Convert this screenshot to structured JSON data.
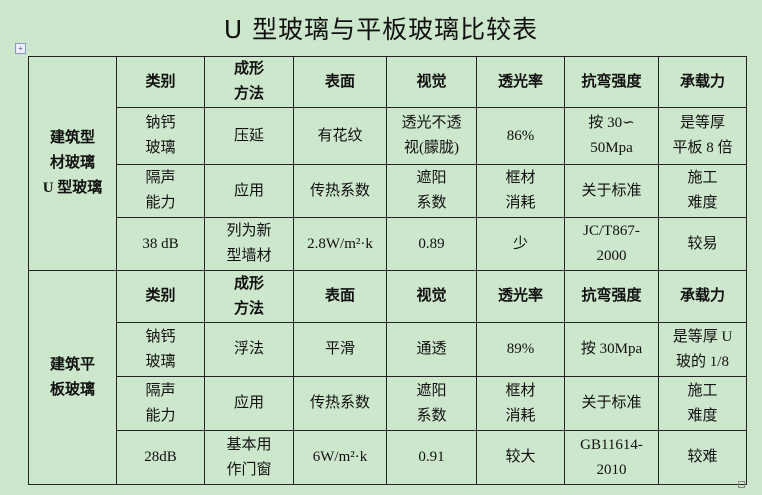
{
  "title": "U 型玻璃与平板玻璃比较表",
  "groups": [
    {
      "label": "建筑型材玻璃U型玻璃",
      "label_lines": [
        "建筑型",
        "材玻璃",
        "U 型玻璃"
      ],
      "rows": [
        [
          [
            "类别"
          ],
          [
            "成形",
            "方法"
          ],
          [
            "表面"
          ],
          [
            "视觉"
          ],
          [
            "透光率"
          ],
          [
            "抗弯强度"
          ],
          [
            "承载力"
          ]
        ],
        [
          [
            "钠钙",
            "玻璃"
          ],
          [
            "压延"
          ],
          [
            "有花纹"
          ],
          [
            "透光不透",
            "视(朦胧)"
          ],
          [
            "86%"
          ],
          [
            "按 30∽",
            "50Mpa"
          ],
          [
            "是等厚",
            "平板 8 倍"
          ]
        ],
        [
          [
            "隔声",
            "能力"
          ],
          [
            "应用"
          ],
          [
            "传热系数"
          ],
          [
            "遮阳",
            "系数"
          ],
          [
            "框材",
            "消耗"
          ],
          [
            "关于标准"
          ],
          [
            "施工",
            "难度"
          ]
        ],
        [
          [
            "38 dB"
          ],
          [
            "列为新",
            "型墙材"
          ],
          [
            "2.8W/m²·k"
          ],
          [
            "0.89"
          ],
          [
            "少"
          ],
          [
            "JC/T867-",
            "2000"
          ],
          [
            "较易"
          ]
        ]
      ]
    },
    {
      "label": "建筑平板玻璃",
      "label_lines": [
        "建筑平",
        "板玻璃"
      ],
      "rows": [
        [
          [
            "类别"
          ],
          [
            "成形",
            "方法"
          ],
          [
            "表面"
          ],
          [
            "视觉"
          ],
          [
            "透光率"
          ],
          [
            "抗弯强度"
          ],
          [
            "承载力"
          ]
        ],
        [
          [
            "钠钙",
            "玻璃"
          ],
          [
            "浮法"
          ],
          [
            "平滑"
          ],
          [
            "通透"
          ],
          [
            "89%"
          ],
          [
            "按 30Mpa"
          ],
          [
            "是等厚 U",
            "玻的 1/8"
          ]
        ],
        [
          [
            "隔声",
            "能力"
          ],
          [
            "应用"
          ],
          [
            "传热系数"
          ],
          [
            "遮阳",
            "系数"
          ],
          [
            "框材",
            "消耗"
          ],
          [
            "关于标准"
          ],
          [
            "施工",
            "难度"
          ]
        ],
        [
          [
            "28dB"
          ],
          [
            "基本用",
            "作门窗"
          ],
          [
            "6W/m²·k"
          ],
          [
            "0.91"
          ],
          [
            "较大"
          ],
          [
            "GB11614-",
            "2010"
          ],
          [
            "较难"
          ]
        ]
      ]
    }
  ]
}
